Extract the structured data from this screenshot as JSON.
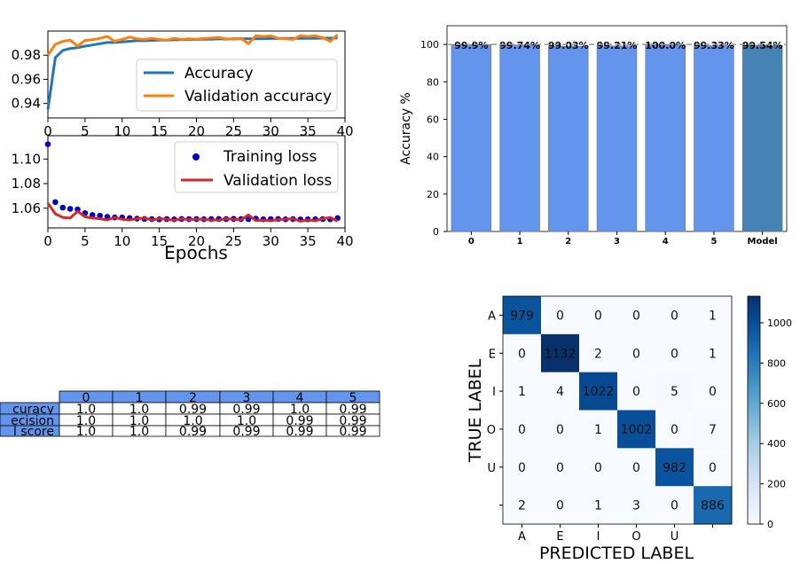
{
  "chart_data": [
    {
      "id": "accuracy_curves",
      "type": "line",
      "xlim": [
        0,
        40
      ],
      "ylim": [
        0.928,
        1.0
      ],
      "xticks": [
        "0",
        "5",
        "10",
        "15",
        "20",
        "25",
        "30",
        "35",
        "40"
      ],
      "yticks": [
        "0.94",
        "0.96",
        "0.98"
      ],
      "legend_position": "lower-right",
      "grid": false,
      "x": [
        0,
        1,
        2,
        3,
        4,
        5,
        6,
        7,
        8,
        9,
        10,
        11,
        12,
        13,
        14,
        15,
        16,
        17,
        18,
        19,
        20,
        21,
        22,
        23,
        24,
        25,
        26,
        27,
        28,
        29,
        30,
        31,
        32,
        33,
        34,
        35,
        36,
        37,
        38,
        39
      ],
      "series": [
        {
          "name": "Accuracy",
          "color": "#1f77b4",
          "values": [
            0.935,
            0.978,
            0.984,
            0.9855,
            0.9862,
            0.9875,
            0.9885,
            0.9895,
            0.9905,
            0.9905,
            0.991,
            0.9915,
            0.992,
            0.992,
            0.9922,
            0.9925,
            0.9925,
            0.9927,
            0.9928,
            0.993,
            0.993,
            0.9932,
            0.9932,
            0.9935,
            0.9933,
            0.9935,
            0.9935,
            0.9935,
            0.9936,
            0.9937,
            0.9938,
            0.9938,
            0.9939,
            0.994,
            0.9939,
            0.994,
            0.994,
            0.9941,
            0.9941,
            0.9942
          ]
        },
        {
          "name": "Validation accuracy",
          "color": "#ff7f0e",
          "values": [
            0.98,
            0.989,
            0.9915,
            0.9925,
            0.9875,
            0.9922,
            0.9928,
            0.994,
            0.9955,
            0.9915,
            0.993,
            0.995,
            0.9935,
            0.993,
            0.994,
            0.993,
            0.9925,
            0.994,
            0.993,
            0.9935,
            0.9932,
            0.9938,
            0.9942,
            0.9947,
            0.9935,
            0.9932,
            0.994,
            0.9895,
            0.996,
            0.9955,
            0.996,
            0.994,
            0.9935,
            0.993,
            0.9962,
            0.9955,
            0.996,
            0.9945,
            0.9915,
            0.997
          ]
        }
      ]
    },
    {
      "id": "loss_curves",
      "type": "scatter",
      "xlim": [
        0,
        40
      ],
      "ylim": [
        1.044,
        1.119
      ],
      "xticks": [
        "0",
        "5",
        "10",
        "15",
        "20",
        "25",
        "30",
        "35",
        "40"
      ],
      "yticks": [
        "1.06",
        "1.08",
        "1.10"
      ],
      "xlabel": "Epochs",
      "legend_position": "upper-right",
      "grid": false,
      "x": [
        0,
        1,
        2,
        3,
        4,
        5,
        6,
        7,
        8,
        9,
        10,
        11,
        12,
        13,
        14,
        15,
        16,
        17,
        18,
        19,
        20,
        21,
        22,
        23,
        24,
        25,
        26,
        27,
        28,
        29,
        30,
        31,
        32,
        33,
        34,
        35,
        36,
        37,
        38,
        39
      ],
      "series": [
        {
          "name": "Training loss",
          "color": "#0000cd",
          "marker": "dot",
          "values": [
            1.112,
            1.065,
            1.0605,
            1.0595,
            1.059,
            1.056,
            1.0545,
            1.054,
            1.053,
            1.0525,
            1.0525,
            1.052,
            1.0515,
            1.0513,
            1.0512,
            1.051,
            1.0512,
            1.051,
            1.0513,
            1.0512,
            1.0512,
            1.0511,
            1.0512,
            1.0513,
            1.0512,
            1.0514,
            1.0512,
            1.0511,
            1.0515,
            1.051,
            1.0512,
            1.0513,
            1.051,
            1.0512,
            1.0509,
            1.051,
            1.0511,
            1.0512,
            1.051,
            1.052
          ]
        },
        {
          "name": "Validation loss",
          "color": "#d62728",
          "marker": "line",
          "values": [
            1.064,
            1.0555,
            1.0525,
            1.052,
            1.0575,
            1.053,
            1.052,
            1.0515,
            1.0505,
            1.0525,
            1.051,
            1.0505,
            1.0515,
            1.052,
            1.0505,
            1.0515,
            1.051,
            1.0502,
            1.0515,
            1.0508,
            1.051,
            1.051,
            1.0503,
            1.0505,
            1.0515,
            1.051,
            1.0505,
            1.0545,
            1.05,
            1.0503,
            1.0498,
            1.0508,
            1.051,
            1.0515,
            1.0495,
            1.0505,
            1.0498,
            1.0515,
            1.0525,
            1.0495
          ]
        }
      ]
    },
    {
      "id": "accuracy_bars",
      "type": "bar",
      "categories": [
        "0",
        "1",
        "2",
        "3",
        "4",
        "5",
        "Model"
      ],
      "values": [
        99.9,
        99.74,
        99.03,
        99.21,
        100.0,
        99.33,
        99.54
      ],
      "data_labels": [
        "99.9%",
        "99.74%",
        "99.03%",
        "99.21%",
        "100.0%",
        "99.33%",
        "99.54%"
      ],
      "bar_colors": [
        "#6495ed",
        "#6495ed",
        "#6495ed",
        "#6495ed",
        "#6495ed",
        "#6495ed",
        "#4682b4"
      ],
      "reference_line": 100,
      "ylabel": "Accuracy %",
      "ylim": [
        0,
        110
      ],
      "yticks": [
        "0",
        "20",
        "40",
        "60",
        "80",
        "100"
      ],
      "grid": false
    },
    {
      "id": "metrics_table",
      "type": "table",
      "columns": [
        "0",
        "1",
        "2",
        "3",
        "4",
        "5"
      ],
      "header_color": "#6495ed",
      "rows": [
        {
          "label": "Accuracy",
          "display": "curacy",
          "values": [
            "1.0",
            "1.0",
            "0.99",
            "0.99",
            "1.0",
            "0.99"
          ]
        },
        {
          "label": "Precision",
          "display": "ecision",
          "values": [
            "1.0",
            "1.0",
            "1.0",
            "1.0",
            "0.99",
            "0.99"
          ]
        },
        {
          "label": "F1 score",
          "display": "l score",
          "values": [
            "1.0",
            "1.0",
            "0.99",
            "0.99",
            "0.99",
            "0.99"
          ]
        }
      ]
    },
    {
      "id": "confusion_matrix",
      "type": "heatmap",
      "xlabel": "PREDICTED LABEL",
      "ylabel": "TRUE LABEL",
      "x_labels": [
        "A",
        "E",
        "I",
        "O",
        "U",
        ""
      ],
      "y_labels": [
        "A",
        "E",
        "I",
        "O",
        "U",
        ""
      ],
      "colormap": "Blues",
      "matrix": [
        [
          979,
          0,
          0,
          0,
          0,
          1
        ],
        [
          0,
          1132,
          2,
          0,
          0,
          1
        ],
        [
          1,
          4,
          1022,
          0,
          5,
          0
        ],
        [
          0,
          0,
          1,
          1002,
          0,
          7
        ],
        [
          0,
          0,
          0,
          0,
          982,
          0
        ],
        [
          2,
          0,
          1,
          3,
          0,
          886
        ]
      ],
      "colorbar_range": [
        0,
        1132
      ],
      "colorbar_ticks": [
        "0",
        "200",
        "400",
        "600",
        "800",
        "1000"
      ]
    }
  ]
}
